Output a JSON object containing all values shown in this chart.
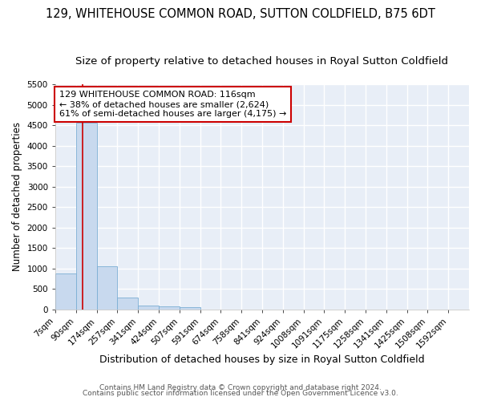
{
  "title": "129, WHITEHOUSE COMMON ROAD, SUTTON COLDFIELD, B75 6DT",
  "subtitle": "Size of property relative to detached houses in Royal Sutton Coldfield",
  "xlabel": "Distribution of detached houses by size in Royal Sutton Coldfield",
  "ylabel": "Number of detached properties",
  "footer1": "Contains HM Land Registry data © Crown copyright and database right 2024.",
  "footer2": "Contains public sector information licensed under the Open Government Licence v3.0.",
  "bin_edges": [
    7,
    90,
    174,
    257,
    341,
    424,
    507,
    591,
    674,
    758,
    841,
    924,
    1008,
    1091,
    1175,
    1258,
    1341,
    1425,
    1508,
    1592,
    1675
  ],
  "bin_counts": [
    880,
    4560,
    1060,
    290,
    90,
    80,
    50,
    0,
    0,
    0,
    0,
    0,
    0,
    0,
    0,
    0,
    0,
    0,
    0,
    0
  ],
  "bar_color": "#c8d9ee",
  "bar_edge_color": "#7baed4",
  "property_size": 116,
  "red_line_color": "#cc0000",
  "annotation_text": "129 WHITEHOUSE COMMON ROAD: 116sqm\n← 38% of detached houses are smaller (2,624)\n61% of semi-detached houses are larger (4,175) →",
  "annotation_box_facecolor": "#ffffff",
  "annotation_border_color": "#cc0000",
  "ylim": [
    0,
    5500
  ],
  "yticks": [
    0,
    500,
    1000,
    1500,
    2000,
    2500,
    3000,
    3500,
    4000,
    4500,
    5000,
    5500
  ],
  "fig_bg_color": "#ffffff",
  "plot_bg_color": "#e8eef7",
  "grid_color": "#ffffff",
  "title_fontsize": 10.5,
  "subtitle_fontsize": 9.5,
  "xlabel_fontsize": 9,
  "ylabel_fontsize": 8.5,
  "annotation_fontsize": 8,
  "tick_fontsize": 7.5,
  "footer_fontsize": 6.5
}
